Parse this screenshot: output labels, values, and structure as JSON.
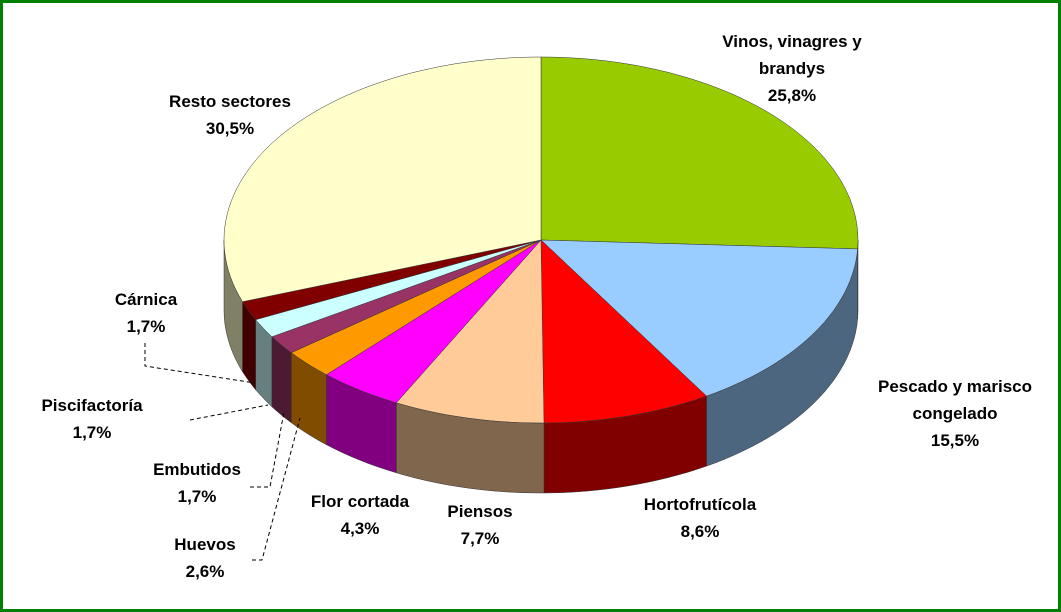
{
  "chart_data": {
    "type": "pie3d",
    "categories": [
      "Vinos, vinagres y brandys",
      "Pescado y marisco congelado",
      "Hortofrutícola",
      "Piensos",
      "Flor cortada",
      "Huevos",
      "Embutidos",
      "Piscifactoría",
      "Cárnica",
      "Resto sectores"
    ],
    "values": [
      25.8,
      15.5,
      8.6,
      7.7,
      4.3,
      2.6,
      1.7,
      1.7,
      1.7,
      30.5
    ],
    "value_labels": [
      "25,8%",
      "15,5%",
      "8,6%",
      "7,7%",
      "4,3%",
      "2,6%",
      "1,7%",
      "1,7%",
      "1,7%",
      "30,5%"
    ],
    "colors": [
      "#99cc00",
      "#99ccff",
      "#ff0000",
      "#ffcc99",
      "#ff00ff",
      "#ff9900",
      "#993366",
      "#ccffff",
      "#800000",
      "#ffffcc"
    ]
  }
}
